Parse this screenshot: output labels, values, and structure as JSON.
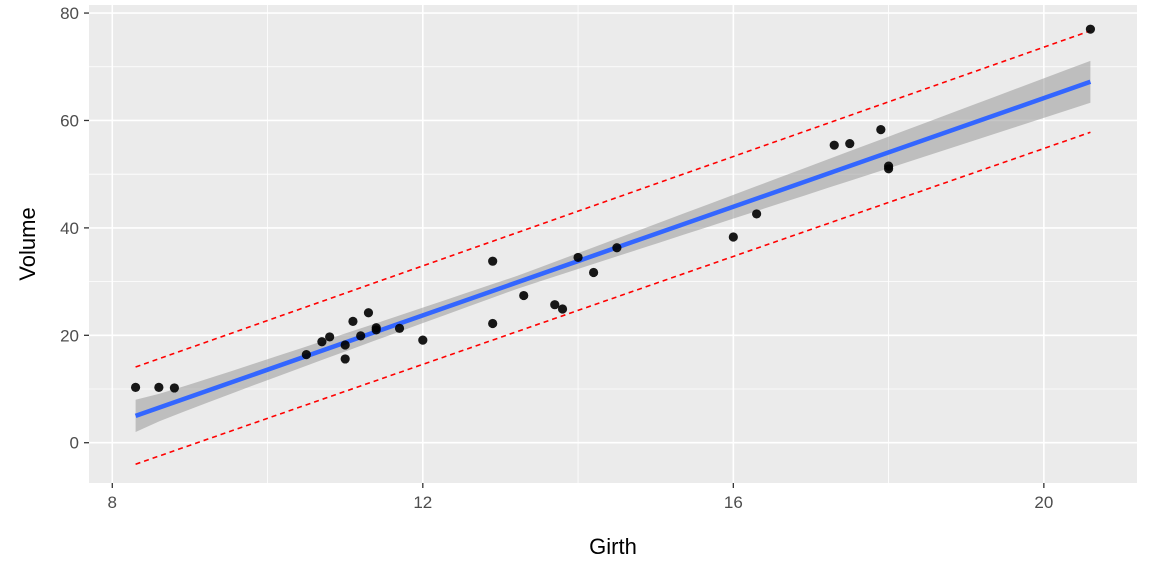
{
  "chart_data": {
    "type": "scatter",
    "xlabel": "Girth",
    "ylabel": "Volume",
    "xlim": [
      7.7,
      21.2
    ],
    "ylim": [
      -7.5,
      81.5
    ],
    "x_ticks_major": [
      8,
      12,
      16,
      20
    ],
    "x_ticks_minor": [
      10,
      14,
      18
    ],
    "y_ticks_major": [
      0,
      20,
      40,
      60,
      80
    ],
    "y_ticks_minor": [
      10,
      30,
      50,
      70
    ],
    "x_tick_labels": [
      "8",
      "12",
      "16",
      "20"
    ],
    "y_tick_labels": [
      "0",
      "20",
      "40",
      "60",
      "80"
    ],
    "grid": true,
    "legend": "none",
    "points": {
      "x": [
        8.3,
        8.6,
        8.8,
        10.5,
        10.7,
        10.8,
        11.0,
        11.0,
        11.1,
        11.2,
        11.3,
        11.4,
        11.4,
        11.7,
        12.0,
        12.9,
        12.9,
        13.3,
        13.7,
        13.8,
        14.0,
        14.2,
        14.5,
        16.0,
        16.3,
        17.3,
        17.5,
        17.9,
        18.0,
        18.0,
        20.6
      ],
      "y": [
        10.3,
        10.3,
        10.2,
        16.4,
        18.8,
        19.7,
        15.6,
        18.2,
        22.6,
        19.9,
        24.2,
        21.0,
        21.4,
        21.3,
        19.1,
        22.2,
        33.8,
        27.4,
        25.7,
        24.9,
        34.5,
        31.7,
        36.3,
        38.3,
        42.6,
        55.4,
        55.7,
        58.3,
        51.5,
        51.0,
        77.0
      ]
    },
    "regression": {
      "x": [
        8.3,
        20.6
      ],
      "y": [
        5.0,
        67.2
      ],
      "ci_lower": [
        2.0,
        63.3
      ],
      "ci_upper": [
        8.0,
        71.1
      ]
    },
    "prediction_interval": {
      "x": [
        8.3,
        20.6
      ],
      "lower": [
        -4.0,
        57.8
      ],
      "upper": [
        14.1,
        76.7
      ]
    },
    "colors": {
      "panel": "#ebebeb",
      "grid": "#ffffff",
      "points": "#000000",
      "fit_line": "#3366ff",
      "ci_band": "#999999",
      "interval": "#ff0000",
      "tick_text": "#4d4d4d"
    }
  }
}
